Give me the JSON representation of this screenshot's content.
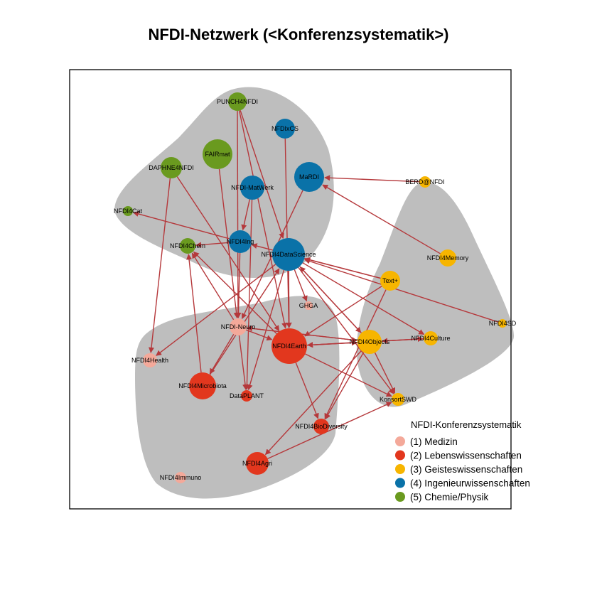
{
  "title": "NFDI-Netzwerk (<Konferenzsystematik>)",
  "legend": {
    "title": "NFDI-Konferenzsystematik",
    "items": [
      {
        "id": 1,
        "label": "(1) Medizin",
        "color": "#F4A99A"
      },
      {
        "id": 2,
        "label": "(2) Lebenswissenschaften",
        "color": "#E2371E"
      },
      {
        "id": 3,
        "label": "(3) Geisteswissenschaften",
        "color": "#F7B500"
      },
      {
        "id": 4,
        "label": "(4) Ingenieurwissenschaften",
        "color": "#0A72A8"
      },
      {
        "id": 5,
        "label": "(5) Chemie/Physik",
        "color": "#6A9A1F"
      }
    ]
  },
  "colors": {
    "group_hull": "#BEBEBE",
    "edge": "#B5383B",
    "frame": "#000000"
  },
  "nodes": [
    {
      "name": "PUNCH4NFDI",
      "group": 5
    },
    {
      "name": "NFDIxCS",
      "group": 4
    },
    {
      "name": "FAIRmat",
      "group": 5
    },
    {
      "name": "DAPHNE4NFDI",
      "group": 5
    },
    {
      "name": "MaRDI",
      "group": 4
    },
    {
      "name": "NFDI-MatWerk",
      "group": 4
    },
    {
      "name": "BERD@NFDI",
      "group": 3
    },
    {
      "name": "NFDI4Cat",
      "group": 5
    },
    {
      "name": "NFDI4Ing",
      "group": 4
    },
    {
      "name": "NFDI4Chem",
      "group": 5
    },
    {
      "name": "NFDI4DataScience",
      "group": 4
    },
    {
      "name": "NFDI4Memory",
      "group": 3
    },
    {
      "name": "Text+",
      "group": 3
    },
    {
      "name": "GHGA",
      "group": 1
    },
    {
      "name": "NFDI4SD",
      "group": 3
    },
    {
      "name": "NFDI-Neuro",
      "group": 1
    },
    {
      "name": "NFDI4Earth",
      "group": 2
    },
    {
      "name": "NFDI4Objects",
      "group": 3
    },
    {
      "name": "NFDI4Culture",
      "group": 3
    },
    {
      "name": "NFDI4Health",
      "group": 1
    },
    {
      "name": "NFDI4Microbiota",
      "group": 2
    },
    {
      "name": "DataPLANT",
      "group": 2
    },
    {
      "name": "KonsortSWD",
      "group": 3
    },
    {
      "name": "NFDI4BioDiversity",
      "group": 2
    },
    {
      "name": "NFDI4Agri",
      "group": 2
    },
    {
      "name": "NFDI4Immuno",
      "group": 1
    }
  ],
  "edges": [
    [
      "BERD@NFDI",
      "MaRDI"
    ],
    [
      "NFDI4Memory",
      "MaRDI"
    ],
    [
      "NFDI4SD",
      "NFDI4DataScience"
    ],
    [
      "Text+",
      "NFDI4DataScience"
    ],
    [
      "Text+",
      "NFDI4Ing"
    ],
    [
      "Text+",
      "NFDI4Earth"
    ],
    [
      "Text+",
      "NFDI4BioDiversity"
    ],
    [
      "NFDI4Objects",
      "NFDI4DataScience"
    ],
    [
      "NFDI4Objects",
      "NFDI4Culture"
    ],
    [
      "NFDI4Objects",
      "NFDI4Earth"
    ],
    [
      "NFDI4Objects",
      "NFDI4Agri"
    ],
    [
      "NFDI4Objects",
      "NFDI4BioDiversity"
    ],
    [
      "NFDI4Objects",
      "NFDI-Neuro"
    ],
    [
      "NFDI4Culture",
      "NFDI4Objects"
    ],
    [
      "NFDI4Culture",
      "NFDI4Earth"
    ],
    [
      "NFDI4DataScience",
      "NFDI4Objects"
    ],
    [
      "NFDI4DataScience",
      "NFDI4Culture"
    ],
    [
      "NFDI4DataScience",
      "NFDI4Earth"
    ],
    [
      "NFDI4DataScience",
      "GHGA"
    ],
    [
      "NFDI4DataScience",
      "DataPLANT"
    ],
    [
      "NFDI4DataScience",
      "KonsortSWD"
    ],
    [
      "NFDI4DataScience",
      "NFDI4Health"
    ],
    [
      "MaRDI",
      "NFDI-Neuro"
    ],
    [
      "PUNCH4NFDI",
      "NFDI4Earth"
    ],
    [
      "PUNCH4NFDI",
      "NFDI4DataScience"
    ],
    [
      "PUNCH4NFDI",
      "NFDI-Neuro"
    ],
    [
      "NFDIxCS",
      "NFDI4Earth"
    ],
    [
      "FAIRmat",
      "NFDI-Neuro"
    ],
    [
      "DAPHNE4NFDI",
      "NFDI4Health"
    ],
    [
      "DAPHNE4NFDI",
      "NFDI4Earth"
    ],
    [
      "NFDI-MatWerk",
      "DataPLANT"
    ],
    [
      "NFDI-MatWerk",
      "NFDI4Ing"
    ],
    [
      "NFDI4Ing",
      "NFDI4Cat"
    ],
    [
      "NFDI4Ing",
      "NFDI4Chem"
    ],
    [
      "NFDI4Ing",
      "NFDI-Neuro"
    ],
    [
      "NFDI-Neuro",
      "NFDI4Chem"
    ],
    [
      "NFDI-Neuro",
      "NFDI4Microbiota"
    ],
    [
      "NFDI-Neuro",
      "NFDI4Objects"
    ],
    [
      "NFDI-Neuro",
      "DataPLANT"
    ],
    [
      "NFDI-Neuro",
      "NFDI4Earth"
    ],
    [
      "NFDI4Microbiota",
      "NFDI4Chem"
    ],
    [
      "NFDI4Microbiota",
      "NFDI4DataScience"
    ],
    [
      "NFDI4Earth",
      "NFDI4Chem"
    ],
    [
      "NFDI4Earth",
      "KonsortSWD"
    ],
    [
      "NFDI4Earth",
      "NFDI4Objects"
    ],
    [
      "NFDI4Earth",
      "NFDI4BioDiversity"
    ],
    [
      "NFDI4Agri",
      "KonsortSWD"
    ],
    [
      "NFDI4Objects",
      "KonsortSWD"
    ]
  ]
}
